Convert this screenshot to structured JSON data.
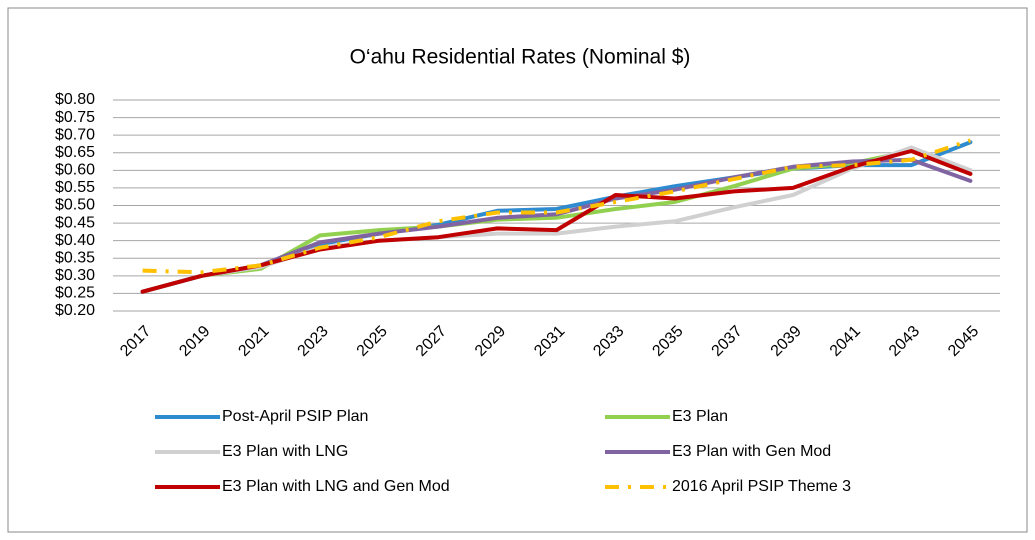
{
  "chart_data": {
    "type": "line",
    "title": "O‘ahu Residential Rates (Nominal $)",
    "categories": [
      "2017",
      "2019",
      "2021",
      "2023",
      "2025",
      "2027",
      "2029",
      "2031",
      "2033",
      "2035",
      "2037",
      "2039",
      "2041",
      "2043",
      "2045"
    ],
    "ylim": [
      0.2,
      0.8
    ],
    "yticks": [
      {
        "value": 0.2,
        "label": "$0.20"
      },
      {
        "value": 0.25,
        "label": "$0.25"
      },
      {
        "value": 0.3,
        "label": "$0.30"
      },
      {
        "value": 0.35,
        "label": "$0.35"
      },
      {
        "value": 0.4,
        "label": "$0.40"
      },
      {
        "value": 0.45,
        "label": "$0.45"
      },
      {
        "value": 0.5,
        "label": "$0.50"
      },
      {
        "value": 0.55,
        "label": "$0.55"
      },
      {
        "value": 0.6,
        "label": "$0.60"
      },
      {
        "value": 0.65,
        "label": "$0.65"
      },
      {
        "value": 0.7,
        "label": "$0.70"
      },
      {
        "value": 0.75,
        "label": "$0.75"
      },
      {
        "value": 0.8,
        "label": "$0.80"
      }
    ],
    "grid": true,
    "series": [
      {
        "name": "Post-April PSIP Plan",
        "color": "#2e8bd0",
        "values": [
          0.255,
          0.3,
          0.33,
          0.39,
          0.42,
          0.445,
          0.485,
          0.49,
          0.525,
          0.555,
          0.58,
          0.605,
          0.615,
          0.615,
          0.68
        ]
      },
      {
        "name": "E3 Plan",
        "color": "#92d050",
        "values": [
          0.255,
          0.3,
          0.32,
          0.415,
          0.43,
          0.44,
          0.46,
          0.465,
          0.49,
          0.51,
          0.555,
          0.605,
          0.62,
          0.655,
          0.59
        ]
      },
      {
        "name": "E3 Plan with LNG",
        "color": "#d0d0d0",
        "values": [
          0.255,
          0.3,
          0.325,
          0.38,
          0.4,
          0.41,
          0.42,
          0.42,
          0.44,
          0.455,
          0.495,
          0.53,
          0.605,
          0.665,
          0.6
        ]
      },
      {
        "name": "E3 Plan with Gen Mod",
        "color": "#8064a2",
        "values": [
          0.255,
          0.3,
          0.33,
          0.395,
          0.42,
          0.44,
          0.465,
          0.475,
          0.52,
          0.545,
          0.58,
          0.61,
          0.625,
          0.63,
          0.57
        ]
      },
      {
        "name": "E3 Plan with LNG and Gen Mod",
        "color": "#c00000",
        "values": [
          0.255,
          0.3,
          0.33,
          0.375,
          0.4,
          0.41,
          0.435,
          0.43,
          0.53,
          0.52,
          0.54,
          0.55,
          0.61,
          0.655,
          0.59
        ]
      },
      {
        "name": "2016 April PSIP Theme 3",
        "color": "#ffc000",
        "dashed": true,
        "values": [
          0.315,
          0.31,
          0.33,
          0.38,
          0.41,
          0.455,
          0.48,
          0.48,
          0.51,
          0.54,
          0.575,
          0.61,
          0.615,
          0.63,
          0.685
        ]
      }
    ]
  }
}
